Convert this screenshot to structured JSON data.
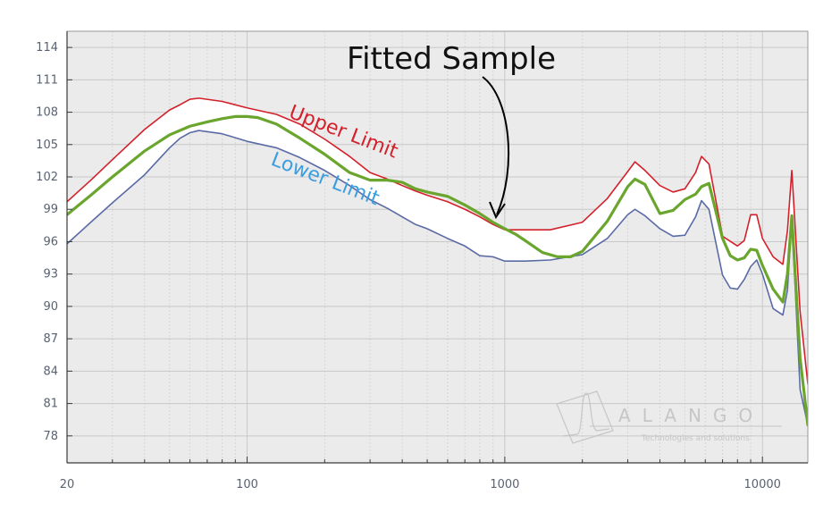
{
  "chart_data": {
    "type": "line",
    "title": "",
    "xlabel": "",
    "ylabel": "",
    "x_scale": "log",
    "xlim": [
      20,
      15000
    ],
    "ylim": [
      75.5,
      115.5
    ],
    "x_ticks": [
      {
        "value": 20,
        "label": "20"
      },
      {
        "value": 100,
        "label": "100"
      },
      {
        "value": 1000,
        "label": "1000"
      },
      {
        "value": 10000,
        "label": "10000"
      }
    ],
    "y_ticks": [
      {
        "value": 78,
        "label": "78"
      },
      {
        "value": 81,
        "label": "81"
      },
      {
        "value": 84,
        "label": "84"
      },
      {
        "value": 87,
        "label": "87"
      },
      {
        "value": 90,
        "label": "90"
      },
      {
        "value": 93,
        "label": "93"
      },
      {
        "value": 96,
        "label": "96"
      },
      {
        "value": 99,
        "label": "99"
      },
      {
        "value": 102,
        "label": "102"
      },
      {
        "value": 105,
        "label": "105"
      },
      {
        "value": 108,
        "label": "108"
      },
      {
        "value": 111,
        "label": "111"
      },
      {
        "value": 114,
        "label": "114"
      }
    ],
    "grid": true,
    "background": "#ebebeb",
    "series": [
      {
        "name": "Upper Limit",
        "color": "#d4202a",
        "x": [
          20,
          25,
          30,
          40,
          50,
          55,
          60,
          65,
          80,
          100,
          130,
          160,
          200,
          250,
          300,
          350,
          400,
          450,
          500,
          600,
          700,
          800,
          900,
          1000,
          1200,
          1500,
          2000,
          2500,
          3000,
          3200,
          3500,
          4000,
          4500,
          5000,
          5500,
          5800,
          6200,
          7000,
          8000,
          8500,
          9000,
          9500,
          10000,
          11000,
          12000,
          12500,
          13000,
          14000,
          15000
        ],
        "values": [
          99.7,
          101.8,
          103.6,
          106.4,
          108.2,
          108.7,
          109.2,
          109.3,
          109.0,
          108.4,
          107.8,
          106.9,
          105.5,
          103.9,
          102.4,
          101.8,
          101.2,
          100.7,
          100.3,
          99.7,
          99.0,
          98.3,
          97.6,
          97.1,
          97.1,
          97.1,
          97.8,
          100.0,
          102.5,
          103.4,
          102.6,
          101.2,
          100.6,
          100.9,
          102.4,
          103.9,
          103.2,
          96.5,
          95.6,
          96.1,
          98.5,
          98.5,
          96.3,
          94.6,
          93.9,
          97.0,
          102.6,
          89.5,
          82.8
        ]
      },
      {
        "name": "Lower Limit",
        "color": "#5a6aa5",
        "x": [
          20,
          25,
          30,
          40,
          50,
          55,
          60,
          65,
          80,
          100,
          130,
          160,
          200,
          250,
          300,
          350,
          400,
          450,
          500,
          600,
          700,
          800,
          900,
          1000,
          1100,
          1200,
          1500,
          2000,
          2500,
          3000,
          3200,
          3500,
          4000,
          4500,
          5000,
          5500,
          5800,
          6200,
          7000,
          7500,
          8000,
          8500,
          9000,
          9500,
          10000,
          11000,
          12000,
          12500,
          13000,
          14000,
          15000
        ],
        "values": [
          95.8,
          97.9,
          99.6,
          102.2,
          104.7,
          105.6,
          106.1,
          106.3,
          106.0,
          105.3,
          104.7,
          103.8,
          102.6,
          101.2,
          99.9,
          99.1,
          98.3,
          97.6,
          97.2,
          96.3,
          95.6,
          94.7,
          94.6,
          94.2,
          94.2,
          94.2,
          94.3,
          94.8,
          96.3,
          98.5,
          99.0,
          98.4,
          97.2,
          96.5,
          96.6,
          98.3,
          99.8,
          99.0,
          92.9,
          91.7,
          91.6,
          92.5,
          93.7,
          94.3,
          93.0,
          89.8,
          89.2,
          91.5,
          98.2,
          82.3,
          79.0
        ]
      },
      {
        "name": "Fitted Sample",
        "color": "#6aa52e",
        "x": [
          20,
          25,
          30,
          40,
          50,
          60,
          70,
          80,
          90,
          100,
          110,
          130,
          160,
          200,
          250,
          300,
          350,
          400,
          450,
          500,
          600,
          700,
          800,
          900,
          1000,
          1100,
          1200,
          1400,
          1600,
          1800,
          2000,
          2500,
          3000,
          3200,
          3500,
          4000,
          4500,
          5000,
          5500,
          5800,
          6200,
          7000,
          7500,
          8000,
          8500,
          9000,
          9500,
          10000,
          11000,
          12000,
          12500,
          13000,
          14000,
          15000
        ],
        "values": [
          98.5,
          100.4,
          102.0,
          104.4,
          105.9,
          106.7,
          107.1,
          107.4,
          107.6,
          107.6,
          107.5,
          106.9,
          105.6,
          104.1,
          102.4,
          101.7,
          101.7,
          101.5,
          100.9,
          100.6,
          100.2,
          99.4,
          98.6,
          97.8,
          97.2,
          96.7,
          96.1,
          95.0,
          94.6,
          94.6,
          95.1,
          97.9,
          101.1,
          101.8,
          101.3,
          98.6,
          98.9,
          99.9,
          100.4,
          101.1,
          101.4,
          96.3,
          94.7,
          94.3,
          94.5,
          95.3,
          95.2,
          93.8,
          91.6,
          90.4,
          93.0,
          98.4,
          85.2,
          79.0
        ]
      }
    ]
  },
  "annotations": {
    "title": "Fitted Sample",
    "upper_label": "Upper Limit",
    "lower_label": "Lower Limit"
  },
  "watermark": {
    "name": "ALANGO",
    "tagline": "Technologies and solutions"
  },
  "colors": {
    "grid_major": "#c8c8c8",
    "grid_minor": "#d6d6d6",
    "axis": "#3a3a3a",
    "fill": "#ffffff",
    "arrow": "#000000"
  }
}
